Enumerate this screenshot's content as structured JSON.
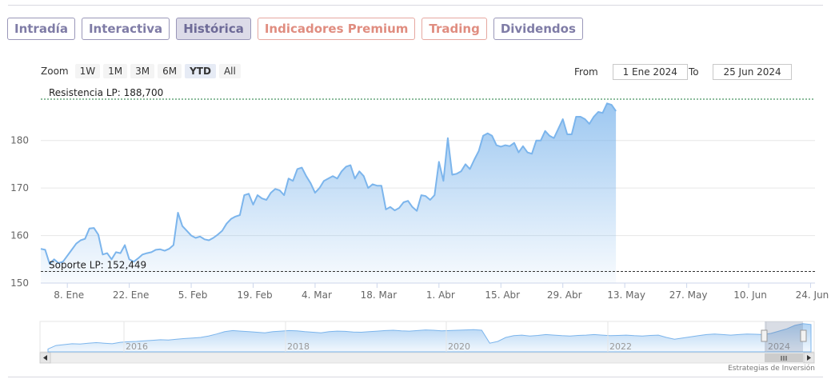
{
  "tabs": [
    {
      "label": "Intradía",
      "style": "normal"
    },
    {
      "label": "Interactiva",
      "style": "normal"
    },
    {
      "label": "Histórica",
      "style": "active"
    },
    {
      "label": "Indicadores Premium",
      "style": "premium"
    },
    {
      "label": "Trading",
      "style": "premium"
    },
    {
      "label": "Dividendos",
      "style": "normal"
    }
  ],
  "zoom": {
    "label": "Zoom",
    "buttons": [
      "1W",
      "1M",
      "3M",
      "6M",
      "YTD",
      "All"
    ],
    "selected": "YTD"
  },
  "range": {
    "from_label": "From",
    "from_value": "1 Ene 2024",
    "to_label": "To",
    "to_value": "25 Jun 2024"
  },
  "credit": "Estrategias de Inversión",
  "colors": {
    "series": "#7cb5ec",
    "tab_border": "#9a97b9",
    "tab_text": "#7f7ca6",
    "premium_tab": "#e08d80",
    "resistance_line": "#1a7a3a",
    "support_line": "#333333"
  },
  "chart_data": {
    "type": "area",
    "ylim": [
      150,
      188.7
    ],
    "y_ticks": [
      150,
      160,
      170,
      180
    ],
    "x_ticks": [
      {
        "day": 7,
        "label": "8. Ene"
      },
      {
        "day": 21,
        "label": "22. Ene"
      },
      {
        "day": 35,
        "label": "5. Feb"
      },
      {
        "day": 49,
        "label": "19. Feb"
      },
      {
        "day": 63,
        "label": "4. Mar"
      },
      {
        "day": 77,
        "label": "18. Mar"
      },
      {
        "day": 91,
        "label": "1. Abr"
      },
      {
        "day": 105,
        "label": "15. Abr"
      },
      {
        "day": 119,
        "label": "29. Abr"
      },
      {
        "day": 133,
        "label": "13. May"
      },
      {
        "day": 147,
        "label": "27. May"
      },
      {
        "day": 161,
        "label": "10. Jun"
      },
      {
        "day": 175,
        "label": "24. Jun"
      }
    ],
    "x_domain": [
      1,
      176
    ],
    "resistance": {
      "label": "Resistencia LP: 188,700",
      "value": 188.7
    },
    "support": {
      "label": "Soporte LP: 152,449",
      "value": 152.449
    },
    "series": [
      {
        "points": [
          [
            1,
            157.2
          ],
          [
            2,
            157.0
          ],
          [
            3,
            154.0
          ],
          [
            4,
            155.0
          ],
          [
            5,
            154.2
          ],
          [
            6,
            154.5
          ],
          [
            8,
            157.0
          ],
          [
            9,
            158.3
          ],
          [
            10,
            159.0
          ],
          [
            11,
            159.3
          ],
          [
            12,
            161.5
          ],
          [
            13,
            161.6
          ],
          [
            14,
            160.2
          ],
          [
            15,
            156.0
          ],
          [
            16,
            156.3
          ],
          [
            17,
            155.0
          ],
          [
            18,
            156.5
          ],
          [
            19,
            156.3
          ],
          [
            20,
            158.0
          ],
          [
            21,
            155.0
          ],
          [
            22,
            154.5
          ],
          [
            23,
            155.2
          ],
          [
            24,
            156.0
          ],
          [
            25,
            156.3
          ],
          [
            26,
            156.5
          ],
          [
            27,
            157.0
          ],
          [
            28,
            157.1
          ],
          [
            29,
            156.8
          ],
          [
            30,
            157.2
          ],
          [
            31,
            158.0
          ],
          [
            32,
            164.8
          ],
          [
            33,
            162.0
          ],
          [
            34,
            161.0
          ],
          [
            35,
            160.0
          ],
          [
            36,
            159.5
          ],
          [
            37,
            159.8
          ],
          [
            38,
            159.2
          ],
          [
            39,
            159.0
          ],
          [
            40,
            159.5
          ],
          [
            41,
            160.2
          ],
          [
            42,
            161.0
          ],
          [
            43,
            162.5
          ],
          [
            44,
            163.5
          ],
          [
            45,
            164.0
          ],
          [
            46,
            164.3
          ],
          [
            47,
            168.5
          ],
          [
            48,
            168.8
          ],
          [
            49,
            166.5
          ],
          [
            50,
            168.5
          ],
          [
            51,
            167.8
          ],
          [
            52,
            167.5
          ],
          [
            53,
            169.0
          ],
          [
            54,
            169.8
          ],
          [
            55,
            169.5
          ],
          [
            56,
            168.5
          ],
          [
            57,
            172.0
          ],
          [
            58,
            171.5
          ],
          [
            59,
            174.0
          ],
          [
            60,
            174.3
          ],
          [
            61,
            172.5
          ],
          [
            62,
            171.0
          ],
          [
            63,
            169.0
          ],
          [
            64,
            170.0
          ],
          [
            65,
            171.5
          ],
          [
            66,
            172.0
          ],
          [
            67,
            172.5
          ],
          [
            68,
            172.0
          ],
          [
            69,
            173.5
          ],
          [
            70,
            174.5
          ],
          [
            71,
            174.8
          ],
          [
            72,
            172.0
          ],
          [
            73,
            173.5
          ],
          [
            74,
            172.5
          ],
          [
            75,
            170.0
          ],
          [
            76,
            170.8
          ],
          [
            77,
            170.5
          ],
          [
            78,
            170.5
          ],
          [
            79,
            165.5
          ],
          [
            80,
            166.0
          ],
          [
            81,
            165.3
          ],
          [
            82,
            165.8
          ],
          [
            83,
            167.0
          ],
          [
            84,
            167.3
          ],
          [
            85,
            166.0
          ],
          [
            86,
            165.2
          ],
          [
            87,
            168.5
          ],
          [
            88,
            168.3
          ],
          [
            89,
            167.5
          ],
          [
            90,
            168.5
          ],
          [
            91,
            175.5
          ],
          [
            92,
            171.5
          ],
          [
            93,
            180.5
          ],
          [
            94,
            172.8
          ],
          [
            95,
            173.0
          ],
          [
            96,
            173.5
          ],
          [
            97,
            175.0
          ],
          [
            98,
            174.0
          ],
          [
            99,
            176.0
          ],
          [
            100,
            177.8
          ],
          [
            101,
            181.0
          ],
          [
            102,
            181.5
          ],
          [
            103,
            181.0
          ],
          [
            104,
            179.0
          ],
          [
            105,
            178.7
          ],
          [
            106,
            179.0
          ],
          [
            107,
            178.8
          ],
          [
            108,
            179.5
          ],
          [
            109,
            177.5
          ],
          [
            110,
            178.8
          ],
          [
            111,
            177.5
          ],
          [
            112,
            177.2
          ],
          [
            113,
            180.0
          ],
          [
            114,
            180.0
          ],
          [
            115,
            182.0
          ],
          [
            116,
            181.0
          ],
          [
            117,
            180.5
          ],
          [
            118,
            182.5
          ],
          [
            119,
            184.5
          ],
          [
            120,
            181.3
          ],
          [
            121,
            181.3
          ],
          [
            122,
            185.0
          ],
          [
            123,
            185.0
          ],
          [
            124,
            184.5
          ],
          [
            125,
            183.5
          ],
          [
            126,
            185.0
          ],
          [
            127,
            186.0
          ],
          [
            128,
            185.8
          ],
          [
            129,
            187.8
          ],
          [
            130,
            187.5
          ],
          [
            131,
            186.2
          ]
        ]
      }
    ]
  },
  "navigator": {
    "year_labels": [
      "2016",
      "2018",
      "2020",
      "2022",
      "2024"
    ]
  }
}
